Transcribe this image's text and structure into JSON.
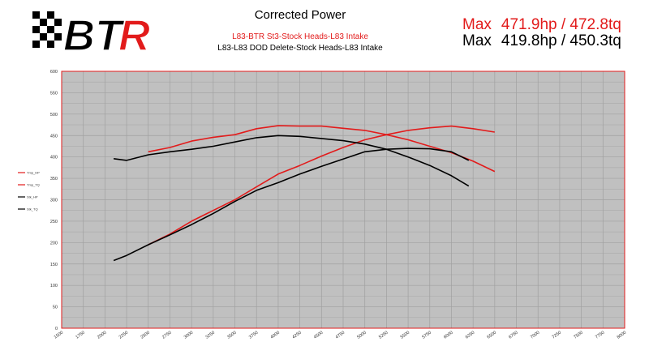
{
  "logo": {
    "text": "BTR",
    "colors": {
      "checker": "#000000",
      "b_t": "#000000",
      "r": "#e21b1b"
    }
  },
  "header": {
    "title": "Corrected Power",
    "subtitle_red": "L83-BTR St3-Stock Heads-L83 Intake",
    "subtitle_black": "L83-L83 DOD Delete-Stock Heads-L83 Intake",
    "max_red": {
      "label": "Max",
      "value": "471.9hp / 472.8tq"
    },
    "max_black": {
      "label": "Max",
      "value": "419.8hp / 450.3tq"
    }
  },
  "colors": {
    "red": "#e21b1b",
    "black": "#000000",
    "plot_bg": "#c0c0c0",
    "grid": "#a0a0a0",
    "border": "#e21b1b"
  },
  "chart_data": {
    "type": "line",
    "title": "Corrected Power",
    "xlim": [
      1500,
      8000
    ],
    "ylim": [
      0,
      600
    ],
    "x_ticks": [
      1500,
      1750,
      2000,
      2250,
      2500,
      2750,
      3000,
      3250,
      3500,
      3750,
      4000,
      4250,
      4500,
      4750,
      5000,
      5250,
      5500,
      5750,
      6000,
      6250,
      6500,
      6750,
      7000,
      7250,
      7500,
      7750,
      8000
    ],
    "y_ticks": [
      0,
      50,
      100,
      150,
      200,
      250,
      300,
      350,
      400,
      450,
      500,
      550,
      600
    ],
    "grid": true,
    "legend_position": "left",
    "series": [
      {
        "name": "Tmp_HP",
        "color": "#e21b1b",
        "x": [
          2500,
          2750,
          3000,
          3250,
          3500,
          3750,
          4000,
          4250,
          4500,
          4750,
          5000,
          5250,
          5500,
          5750,
          6000,
          6250,
          6500
        ],
        "y": [
          195,
          220,
          250,
          275,
          300,
          330,
          360,
          380,
          402,
          422,
          440,
          452,
          462,
          468,
          472,
          466,
          458
        ]
      },
      {
        "name": "Tmp_TQ",
        "color": "#e21b1b",
        "x": [
          2500,
          2750,
          3000,
          3250,
          3500,
          3750,
          4000,
          4250,
          4500,
          4750,
          5000,
          5250,
          5500,
          5750,
          6000,
          6250,
          6500
        ],
        "y": [
          412,
          422,
          437,
          446,
          452,
          466,
          473,
          472,
          472,
          467,
          462,
          452,
          440,
          425,
          410,
          390,
          366
        ]
      },
      {
        "name": "Stk_HP",
        "color": "#000000",
        "x": [
          2100,
          2250,
          2500,
          2750,
          3000,
          3250,
          3500,
          3750,
          4000,
          4250,
          4500,
          4750,
          5000,
          5250,
          5500,
          5750,
          6000,
          6200
        ],
        "y": [
          158,
          170,
          195,
          218,
          242,
          268,
          296,
          322,
          340,
          360,
          378,
          395,
          412,
          418,
          420,
          419,
          412,
          392
        ]
      },
      {
        "name": "Stk_TQ",
        "color": "#000000",
        "x": [
          2100,
          2250,
          2500,
          2750,
          3000,
          3250,
          3500,
          3750,
          4000,
          4250,
          4500,
          4750,
          5000,
          5250,
          5500,
          5750,
          6000,
          6200
        ],
        "y": [
          396,
          392,
          405,
          412,
          418,
          425,
          435,
          445,
          450,
          448,
          443,
          438,
          430,
          418,
          400,
          380,
          356,
          332
        ]
      }
    ]
  }
}
